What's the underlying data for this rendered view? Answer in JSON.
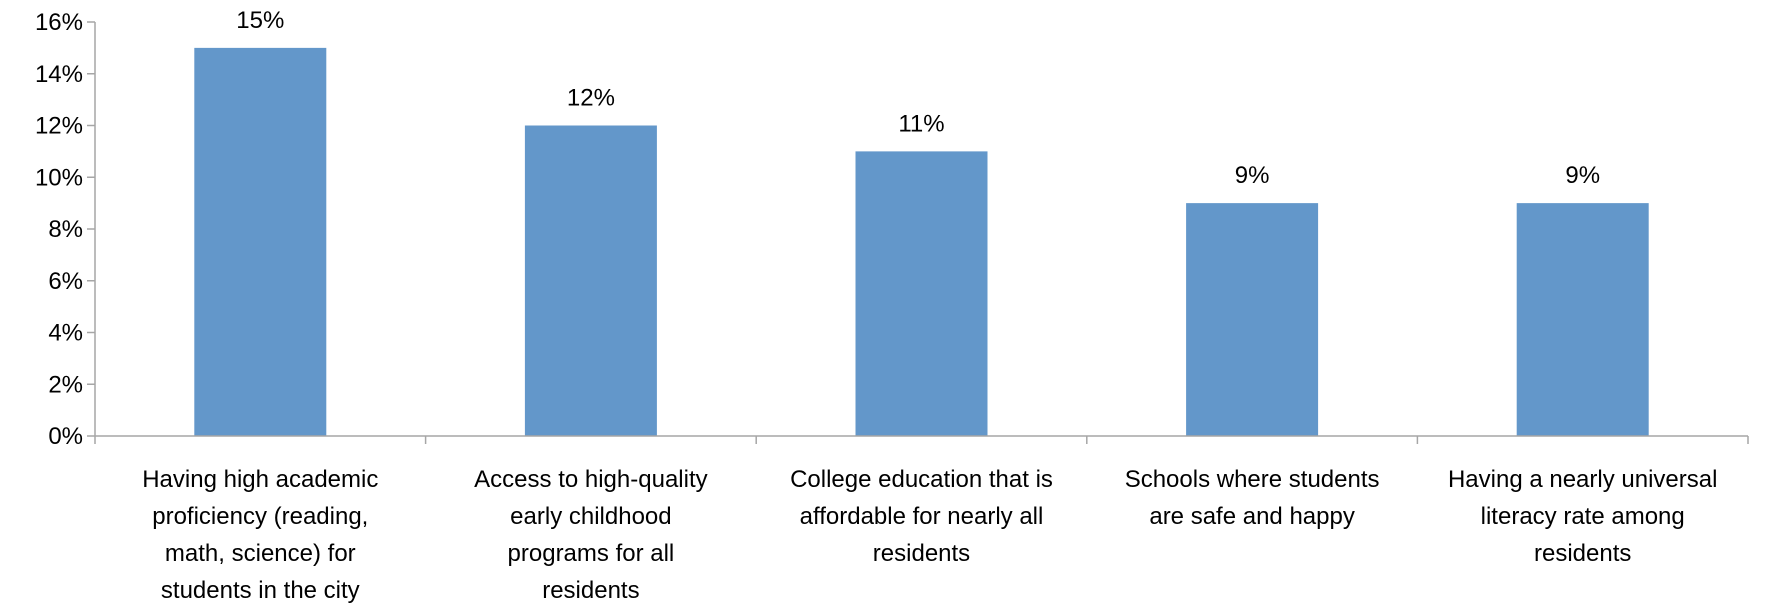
{
  "chart_data": {
    "type": "bar",
    "categories": [
      [
        "Having high academic",
        "proficiency (reading,",
        "math, science) for",
        "students in the city"
      ],
      [
        "Access to high-quality",
        "early childhood",
        "programs for all",
        "residents"
      ],
      [
        "College education that is",
        "affordable for nearly all",
        "residents"
      ],
      [
        "Schools where students",
        "are safe and happy"
      ],
      [
        "Having a nearly universal",
        "literacy rate among",
        "residents"
      ]
    ],
    "values": [
      15,
      12,
      11,
      9,
      9
    ],
    "data_labels": [
      "15%",
      "12%",
      "11%",
      "9%",
      "9%"
    ],
    "y_ticks": [
      "0%",
      "2%",
      "4%",
      "6%",
      "8%",
      "10%",
      "12%",
      "14%",
      "16%"
    ],
    "ylim": [
      0,
      16
    ],
    "grid": false,
    "legend": "none",
    "bar_color": "#6397CA",
    "axis_color": "#A6A6A6"
  }
}
